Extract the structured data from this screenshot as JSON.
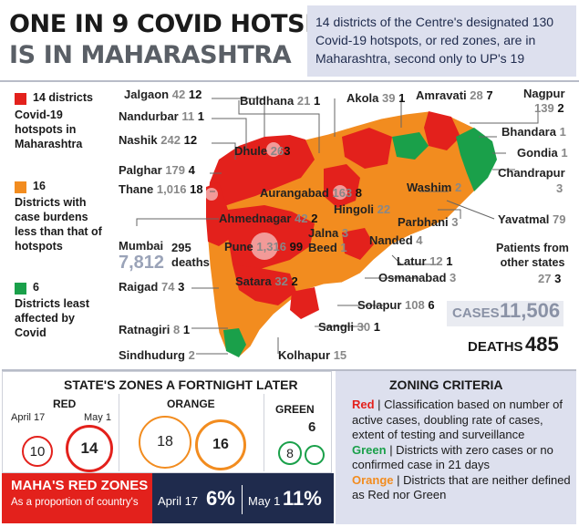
{
  "header": {
    "title_line1": "ONE IN 9 COVID HOTSPOTS",
    "title_line2": "IS IN MAHARASHTRA",
    "subtitle": "14 districts of the Centre's designated 130 Covid-19 hotspots, or red zones, are in Maharashtra, second only to UP's 19"
  },
  "legend": [
    {
      "color": "#e3211c",
      "count": "14 districts",
      "text": "Covid-19 hotspots in Maharashtra"
    },
    {
      "color": "#f28c1f",
      "count": "16",
      "text": "Districts with case burdens less than that of hotspots"
    },
    {
      "color": "#1aa04a",
      "count": "6",
      "text": "Districts least affected by Covid"
    }
  ],
  "districts": [
    {
      "name": "Jalgaon",
      "cases": "42",
      "hotspots": "12"
    },
    {
      "name": "Nandurbar",
      "cases": "11",
      "hotspots": "1"
    },
    {
      "name": "Nashik",
      "cases": "242",
      "hotspots": "12"
    },
    {
      "name": "Palghar",
      "cases": "179",
      "hotspots": "4"
    },
    {
      "name": "Thane",
      "cases": "1,016",
      "hotspots": "18"
    },
    {
      "name": "Raigad",
      "cases": "74",
      "hotspots": "3"
    },
    {
      "name": "Ratnagiri",
      "cases": "8",
      "hotspots": "1"
    },
    {
      "name": "Sindhudurg",
      "cases": "2",
      "hotspots": ""
    },
    {
      "name": "Buldhana",
      "cases": "21",
      "hotspots": "1"
    },
    {
      "name": "Akola",
      "cases": "39",
      "hotspots": "1"
    },
    {
      "name": "Amravati",
      "cases": "28",
      "hotspots": "7"
    },
    {
      "name": "Nagpur",
      "cases": "139",
      "hotspots": "2"
    },
    {
      "name": "Bhandara",
      "cases": "1",
      "hotspots": ""
    },
    {
      "name": "Gondia",
      "cases": "1",
      "hotspots": ""
    },
    {
      "name": "Chandrapur",
      "cases": "3",
      "hotspots": ""
    },
    {
      "name": "Yavatmal",
      "cases": "79",
      "hotspots": ""
    },
    {
      "name": "Washim",
      "cases": "2",
      "hotspots": ""
    },
    {
      "name": "Dhule",
      "cases": "26",
      "hotspots": "3"
    },
    {
      "name": "Aurangabad",
      "cases": "163",
      "hotspots": "8"
    },
    {
      "name": "Hingoli",
      "cases": "22",
      "hotspots": ""
    },
    {
      "name": "Parbhani",
      "cases": "3",
      "hotspots": ""
    },
    {
      "name": "Ahmednagar",
      "cases": "42",
      "hotspots": "2"
    },
    {
      "name": "Jalna",
      "cases": "3",
      "hotspots": ""
    },
    {
      "name": "Beed",
      "cases": "1",
      "hotspots": ""
    },
    {
      "name": "Nanded",
      "cases": "4",
      "hotspots": ""
    },
    {
      "name": "Latur",
      "cases": "12",
      "hotspots": "1"
    },
    {
      "name": "Osmanabad",
      "cases": "3",
      "hotspots": ""
    },
    {
      "name": "Pune",
      "cases": "1,316",
      "hotspots": "99"
    },
    {
      "name": "Satara",
      "cases": "32",
      "hotspots": "2"
    },
    {
      "name": "Solapur",
      "cases": "108",
      "hotspots": "6"
    },
    {
      "name": "Sangli",
      "cases": "30",
      "hotspots": "1"
    },
    {
      "name": "Kolhapur",
      "cases": "15",
      "hotspots": ""
    }
  ],
  "mumbai": {
    "name": "Mumbai",
    "cases": "7,812",
    "deaths": "295",
    "deaths_label": "deaths"
  },
  "other_states": {
    "label": "Patients from other states",
    "cases": "27",
    "hotspots": "3"
  },
  "totals": {
    "cases_label": "CASES",
    "cases": "11,506",
    "deaths_label": "DEATHS",
    "deaths": "485"
  },
  "zones": {
    "title": "STATE'S ZONES A FORTNIGHT LATER",
    "red": {
      "label": "RED",
      "date1": "April 17",
      "date2": "May 1",
      "v1": "10",
      "v2": "14"
    },
    "orange": {
      "label": "ORANGE",
      "v1": "18",
      "v2": "16"
    },
    "green": {
      "label": "GREEN",
      "v1": "8",
      "v2": "6"
    }
  },
  "criteria": {
    "title": "ZONING CRITERIA",
    "red_label": "Red",
    "red_text": " | Classification based on number of active cases, doubling rate of cases, extent of testing and surveillance",
    "green_label": "Green",
    "green_text": " | Districts with zero cases or no confirmed case in 21 days",
    "orange_label": "Orange",
    "orange_text": " | Districts that are neither defined as Red nor Green"
  },
  "maha_red": {
    "title": "MAHA'S RED ZONES",
    "subtitle": "As a proportion of country's",
    "d1": "April 17",
    "v1": "6%",
    "d2": "May 1",
    "v2": "11%"
  },
  "colors": {
    "red": "#e3211c",
    "orange": "#f28c1f",
    "green": "#1aa04a",
    "navy": "#1f2b4d",
    "lav": "#dde0ee"
  }
}
